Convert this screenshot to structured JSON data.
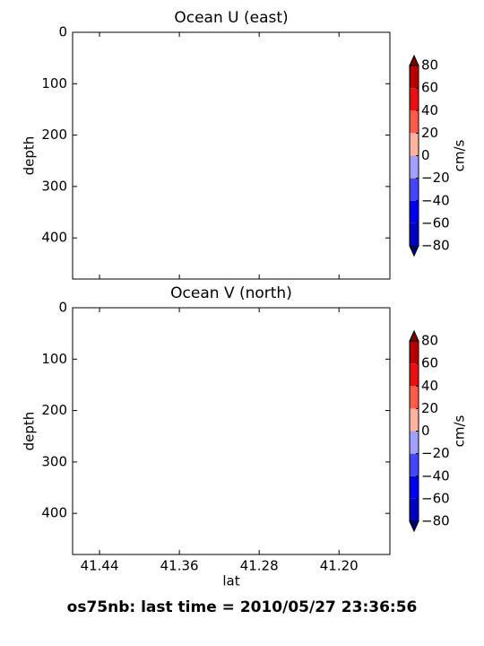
{
  "chart_data": [
    {
      "type": "contourf",
      "title": "Ocean U (east)",
      "ylabel": "depth",
      "xlim": [
        41.467,
        41.149
      ],
      "xticks": [
        41.44,
        41.36,
        41.28,
        {
          "value": 41.2,
          "label": "41.20"
        }
      ],
      "xticklabels": false,
      "ylim": [
        480,
        0
      ],
      "yticks": [
        0,
        100,
        200,
        300,
        400
      ],
      "colorbar": {
        "label": "cm/s",
        "ticks": [
          {
            "value": -80,
            "label": "−80"
          },
          {
            "value": -60,
            "label": "−60"
          },
          {
            "value": -40,
            "label": "−40"
          },
          {
            "value": -20,
            "label": "−20"
          },
          0,
          20,
          40,
          60,
          80
        ],
        "colors": [
          "#0000c0",
          "#0000f0",
          "#4545ff",
          "#a0a0ff",
          "#ffb4a0",
          "#ff5a4a",
          "#e81010",
          "#b80000"
        ],
        "extend_colors": [
          "#000070",
          "#800000"
        ]
      }
    },
    {
      "type": "contourf",
      "title": "Ocean V (north)",
      "ylabel": "depth",
      "xlabel": "lat",
      "xlim": [
        41.467,
        41.149
      ],
      "xticks": [
        41.44,
        41.36,
        41.28,
        {
          "value": 41.2,
          "label": "41.20"
        }
      ],
      "xticklabels": true,
      "ylim": [
        480,
        0
      ],
      "yticks": [
        0,
        100,
        200,
        300,
        400
      ],
      "colorbar": {
        "label": "cm/s",
        "ticks": [
          {
            "value": -80,
            "label": "−80"
          },
          {
            "value": -60,
            "label": "−60"
          },
          {
            "value": -40,
            "label": "−40"
          },
          {
            "value": -20,
            "label": "−20"
          },
          0,
          20,
          40,
          60,
          80
        ],
        "colors": [
          "#0000c0",
          "#0000f0",
          "#4545ff",
          "#a0a0ff",
          "#ffb4a0",
          "#ff5a4a",
          "#e81010",
          "#b80000"
        ],
        "extend_colors": [
          "#000070",
          "#800000"
        ]
      }
    }
  ],
  "footer": "os75nb: last time = 2010/05/27 23:36:56"
}
